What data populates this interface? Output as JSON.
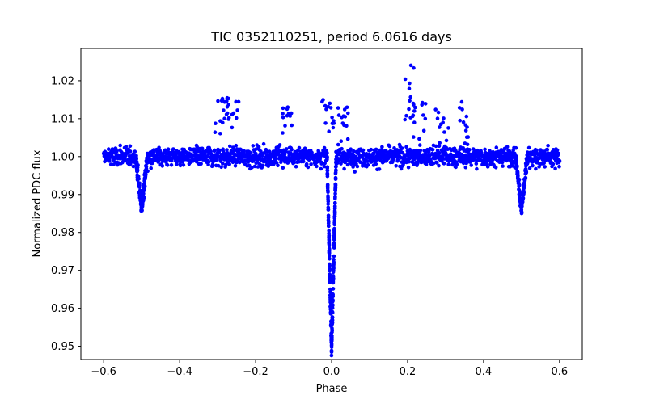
{
  "chart_data": {
    "type": "scatter",
    "title": "TIC 0352110251, period 6.0616 days",
    "xlabel": "Phase",
    "ylabel": "Normalized PDC flux",
    "xlim": [
      -0.66,
      0.66
    ],
    "ylim": [
      0.9465,
      1.0285
    ],
    "xticks": [
      -0.6,
      -0.4,
      -0.2,
      0.0,
      0.2,
      0.4,
      0.6
    ],
    "xtick_labels": [
      "−0.6",
      "−0.4",
      "−0.2",
      "0.0",
      "0.2",
      "0.4",
      "0.6"
    ],
    "yticks": [
      0.95,
      0.96,
      0.97,
      0.98,
      0.99,
      1.0,
      1.01,
      1.02
    ],
    "ytick_labels": [
      "0.95",
      "0.96",
      "0.97",
      "0.98",
      "0.99",
      "1.00",
      "1.01",
      "1.02"
    ],
    "grid": false,
    "series": [
      {
        "name": "PDC flux",
        "color": "#0000ff",
        "baseline": 1.0,
        "phase_range": [
          -0.6,
          0.6
        ],
        "baseline_scatter": 0.0025,
        "features": [
          {
            "kind": "primary_eclipse",
            "center": 0.0,
            "min_flux": 0.949,
            "half_width": 0.012
          },
          {
            "kind": "secondary_eclipse",
            "center": -0.5,
            "min_flux": 0.986,
            "half_width": 0.015
          },
          {
            "kind": "secondary_eclipse",
            "center": 0.5,
            "min_flux": 0.986,
            "half_width": 0.015
          },
          {
            "kind": "flare",
            "center": -0.29,
            "peak_flux": 1.0155
          },
          {
            "kind": "flare",
            "center": -0.26,
            "peak_flux": 1.016
          },
          {
            "kind": "flare",
            "center": -0.12,
            "peak_flux": 1.014
          },
          {
            "kind": "flare",
            "center": 0.2,
            "peak_flux": 1.0245
          },
          {
            "kind": "flare",
            "center": 0.23,
            "peak_flux": 1.0145
          },
          {
            "kind": "flare",
            "center": 0.29,
            "peak_flux": 1.0125
          },
          {
            "kind": "flare",
            "center": 0.35,
            "peak_flux": 1.0145
          },
          {
            "kind": "flare",
            "center": -0.01,
            "peak_flux": 1.0155
          },
          {
            "kind": "flare",
            "center": 0.03,
            "peak_flux": 1.013
          }
        ]
      }
    ]
  }
}
